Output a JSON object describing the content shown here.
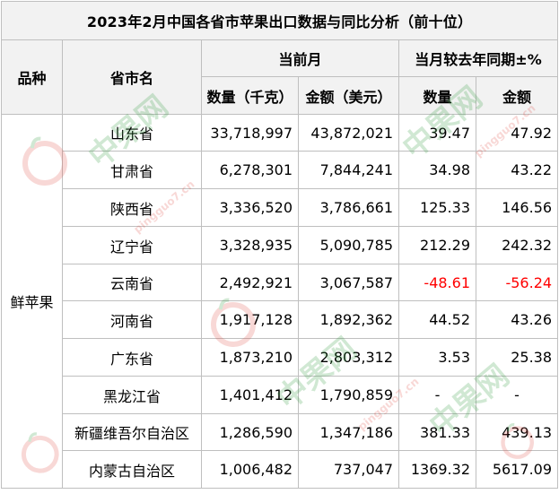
{
  "title": "2023年2月中国各省市苹果出口数据与同比分析（前十位）",
  "headers": {
    "variety": "品种",
    "province": "省市名",
    "current_month": "当前月",
    "yoy": "当月较去年同期±%",
    "quantity": "数量（千克）",
    "amount": "金额（美元）",
    "yoy_quantity": "数量",
    "yoy_amount": "金额"
  },
  "variety_value": "鲜苹果",
  "rows": [
    {
      "province": "山东省",
      "quantity": "33,718,997",
      "amount": "43,872,021",
      "yoy_quantity": "39.47",
      "yoy_amount": "47.92"
    },
    {
      "province": "甘肃省",
      "quantity": "6,278,301",
      "amount": "7,844,241",
      "yoy_quantity": "34.98",
      "yoy_amount": "43.22"
    },
    {
      "province": "陕西省",
      "quantity": "3,336,520",
      "amount": "3,786,661",
      "yoy_quantity": "125.33",
      "yoy_amount": "146.56"
    },
    {
      "province": "辽宁省",
      "quantity": "3,328,935",
      "amount": "5,090,785",
      "yoy_quantity": "212.29",
      "yoy_amount": "242.32"
    },
    {
      "province": "云南省",
      "quantity": "2,492,921",
      "amount": "3,067,587",
      "yoy_quantity": "-48.61",
      "yoy_amount": "-56.24"
    },
    {
      "province": "河南省",
      "quantity": "1,917,128",
      "amount": "1,892,362",
      "yoy_quantity": "44.52",
      "yoy_amount": "43.26"
    },
    {
      "province": "广东省",
      "quantity": "1,873,210",
      "amount": "2,803,312",
      "yoy_quantity": "3.53",
      "yoy_amount": "25.38"
    },
    {
      "province": "黑龙江省",
      "quantity": "1,401,412",
      "amount": "1,790,859",
      "yoy_quantity": "-",
      "yoy_amount": "-"
    },
    {
      "province": "新疆维吾尔自治区",
      "quantity": "1,286,590",
      "amount": "1,347,186",
      "yoy_quantity": "381.33",
      "yoy_amount": "439.13"
    },
    {
      "province": "内蒙古自治区",
      "quantity": "1,006,482",
      "amount": "737,047",
      "yoy_quantity": "1369.32",
      "yoy_amount": "5617.09"
    }
  ],
  "watermark": {
    "text": "中果网",
    "sub": "pingguo7.cn"
  },
  "colors": {
    "negative": "#ff0000",
    "header_bg": "#f2f2f2",
    "watermark_green": "#2f9a3a",
    "watermark_red": "#e0504a"
  }
}
